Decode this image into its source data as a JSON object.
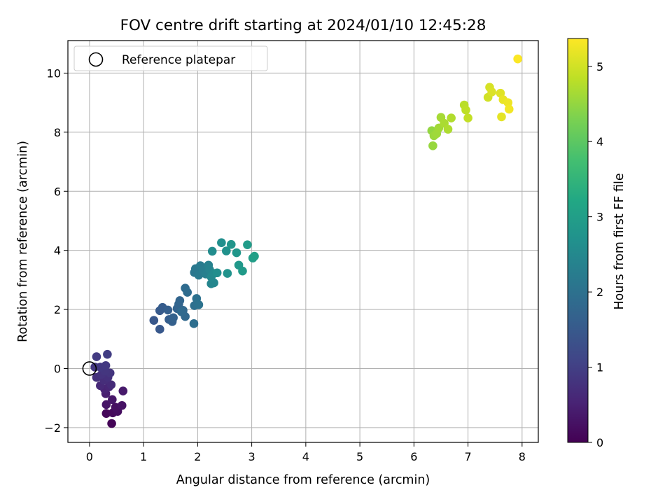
{
  "chart_data": {
    "type": "scatter",
    "title": "FOV centre drift starting at 2024/01/10 12:45:28",
    "xlabel": "Angular distance from reference (arcmin)",
    "ylabel": "Rotation from reference (arcmin)",
    "colorbar_label": "Hours from first FF file",
    "xlim": [
      -0.4,
      8.3
    ],
    "ylim": [
      -2.5,
      11.1
    ],
    "xticks": [
      0,
      1,
      2,
      3,
      4,
      5,
      6,
      7,
      8
    ],
    "yticks": [
      -2,
      0,
      2,
      4,
      6,
      8,
      10
    ],
    "colorbar_ticks": [
      0,
      1,
      2,
      3,
      4,
      5
    ],
    "colorbar_range": [
      0,
      5.37
    ],
    "colormap": "viridis",
    "grid": true,
    "legend": {
      "position": "top-left",
      "entries": [
        "Reference platepar"
      ]
    },
    "reference_point": {
      "x": 0,
      "y": 0
    },
    "series": [
      {
        "points": [
          {
            "x": 0.41,
            "y": -1.86,
            "t": 0.05
          },
          {
            "x": 0.31,
            "y": -1.52,
            "t": 0.1
          },
          {
            "x": 0.43,
            "y": -1.5,
            "t": 0.14
          },
          {
            "x": 0.52,
            "y": -1.45,
            "t": 0.18
          },
          {
            "x": 0.48,
            "y": -1.31,
            "t": 0.22
          },
          {
            "x": 0.6,
            "y": -1.25,
            "t": 0.26
          },
          {
            "x": 0.31,
            "y": -1.22,
            "t": 0.3
          },
          {
            "x": 0.42,
            "y": -1.05,
            "t": 0.34
          },
          {
            "x": 0.62,
            "y": -0.76,
            "t": 0.38
          },
          {
            "x": 0.3,
            "y": -0.85,
            "t": 0.45
          },
          {
            "x": 0.28,
            "y": -0.7,
            "t": 0.52
          },
          {
            "x": 0.36,
            "y": -0.62,
            "t": 0.58
          },
          {
            "x": 0.2,
            "y": -0.58,
            "t": 0.62
          },
          {
            "x": 0.4,
            "y": -0.55,
            "t": 0.66
          },
          {
            "x": 0.27,
            "y": -0.4,
            "t": 0.7
          },
          {
            "x": 0.34,
            "y": -0.3,
            "t": 0.74
          },
          {
            "x": 0.13,
            "y": -0.3,
            "t": 0.76
          },
          {
            "x": 0.22,
            "y": -0.2,
            "t": 0.8
          },
          {
            "x": 0.38,
            "y": -0.15,
            "t": 0.82
          },
          {
            "x": 0.28,
            "y": -0.08,
            "t": 0.84
          },
          {
            "x": 0.1,
            "y": 0.05,
            "t": 0.86
          },
          {
            "x": 0.2,
            "y": 0.05,
            "t": 0.88
          },
          {
            "x": 0.3,
            "y": 0.1,
            "t": 0.9
          },
          {
            "x": 0.13,
            "y": 0.4,
            "t": 0.93
          },
          {
            "x": 0.33,
            "y": 0.48,
            "t": 0.96
          },
          {
            "x": 1.19,
            "y": 1.63,
            "t": 1.45
          },
          {
            "x": 1.3,
            "y": 1.33,
            "t": 1.48
          },
          {
            "x": 1.3,
            "y": 1.96,
            "t": 1.52
          },
          {
            "x": 1.35,
            "y": 2.07,
            "t": 1.55
          },
          {
            "x": 1.47,
            "y": 1.66,
            "t": 1.58
          },
          {
            "x": 1.45,
            "y": 1.98,
            "t": 1.61
          },
          {
            "x": 1.53,
            "y": 1.59,
            "t": 1.64
          },
          {
            "x": 1.55,
            "y": 1.72,
            "t": 1.67
          },
          {
            "x": 1.62,
            "y": 2.03,
            "t": 1.7
          },
          {
            "x": 1.65,
            "y": 2.18,
            "t": 1.73
          },
          {
            "x": 1.67,
            "y": 2.3,
            "t": 1.75
          },
          {
            "x": 1.73,
            "y": 1.97,
            "t": 1.78
          },
          {
            "x": 1.77,
            "y": 1.76,
            "t": 1.81
          },
          {
            "x": 1.7,
            "y": 1.92,
            "t": 1.84
          },
          {
            "x": 1.77,
            "y": 2.72,
            "t": 1.87
          },
          {
            "x": 1.81,
            "y": 2.58,
            "t": 1.9
          },
          {
            "x": 1.93,
            "y": 1.52,
            "t": 1.93
          },
          {
            "x": 1.94,
            "y": 2.13,
            "t": 1.96
          },
          {
            "x": 1.98,
            "y": 2.37,
            "t": 1.99
          },
          {
            "x": 2.02,
            "y": 2.16,
            "t": 2.02
          },
          {
            "x": 1.94,
            "y": 3.25,
            "t": 2.1
          },
          {
            "x": 1.96,
            "y": 3.38,
            "t": 2.14
          },
          {
            "x": 2.02,
            "y": 3.16,
            "t": 2.18
          },
          {
            "x": 2.05,
            "y": 3.48,
            "t": 2.22
          },
          {
            "x": 2.1,
            "y": 3.32,
            "t": 2.26
          },
          {
            "x": 2.15,
            "y": 3.2,
            "t": 2.3
          },
          {
            "x": 2.2,
            "y": 3.5,
            "t": 2.34
          },
          {
            "x": 2.22,
            "y": 3.35,
            "t": 2.38
          },
          {
            "x": 2.25,
            "y": 2.87,
            "t": 2.42
          },
          {
            "x": 2.3,
            "y": 2.9,
            "t": 2.46
          },
          {
            "x": 2.25,
            "y": 3.1,
            "t": 2.5
          },
          {
            "x": 2.3,
            "y": 3.22,
            "t": 2.54
          },
          {
            "x": 2.27,
            "y": 3.97,
            "t": 2.58
          },
          {
            "x": 2.36,
            "y": 3.24,
            "t": 2.62
          },
          {
            "x": 2.44,
            "y": 4.26,
            "t": 2.66
          },
          {
            "x": 2.53,
            "y": 3.98,
            "t": 2.7
          },
          {
            "x": 2.55,
            "y": 3.22,
            "t": 2.74
          },
          {
            "x": 2.62,
            "y": 4.2,
            "t": 2.78
          },
          {
            "x": 2.72,
            "y": 3.92,
            "t": 2.82
          },
          {
            "x": 2.76,
            "y": 3.5,
            "t": 2.86
          },
          {
            "x": 2.83,
            "y": 3.3,
            "t": 2.9
          },
          {
            "x": 2.92,
            "y": 4.19,
            "t": 2.94
          },
          {
            "x": 3.02,
            "y": 3.74,
            "t": 2.98
          },
          {
            "x": 3.05,
            "y": 3.8,
            "t": 3.02
          },
          {
            "x": 6.33,
            "y": 8.05,
            "t": 4.5
          },
          {
            "x": 6.35,
            "y": 7.54,
            "t": 4.53
          },
          {
            "x": 6.37,
            "y": 7.88,
            "t": 4.56
          },
          {
            "x": 6.42,
            "y": 7.95,
            "t": 4.59
          },
          {
            "x": 6.46,
            "y": 8.14,
            "t": 4.62
          },
          {
            "x": 6.5,
            "y": 8.5,
            "t": 4.65
          },
          {
            "x": 6.56,
            "y": 8.3,
            "t": 4.68
          },
          {
            "x": 6.63,
            "y": 8.1,
            "t": 4.71
          },
          {
            "x": 6.69,
            "y": 8.48,
            "t": 4.74
          },
          {
            "x": 6.93,
            "y": 8.92,
            "t": 4.8
          },
          {
            "x": 6.96,
            "y": 8.75,
            "t": 4.84
          },
          {
            "x": 7.0,
            "y": 8.48,
            "t": 4.88
          },
          {
            "x": 7.37,
            "y": 9.18,
            "t": 5.0
          },
          {
            "x": 7.4,
            "y": 9.52,
            "t": 5.04
          },
          {
            "x": 7.44,
            "y": 9.36,
            "t": 5.08
          },
          {
            "x": 7.6,
            "y": 9.32,
            "t": 5.12
          },
          {
            "x": 7.62,
            "y": 8.52,
            "t": 5.16
          },
          {
            "x": 7.65,
            "y": 9.1,
            "t": 5.2
          },
          {
            "x": 7.74,
            "y": 9.0,
            "t": 5.24
          },
          {
            "x": 7.76,
            "y": 8.78,
            "t": 5.28
          },
          {
            "x": 7.92,
            "y": 10.48,
            "t": 5.35
          }
        ]
      }
    ]
  }
}
